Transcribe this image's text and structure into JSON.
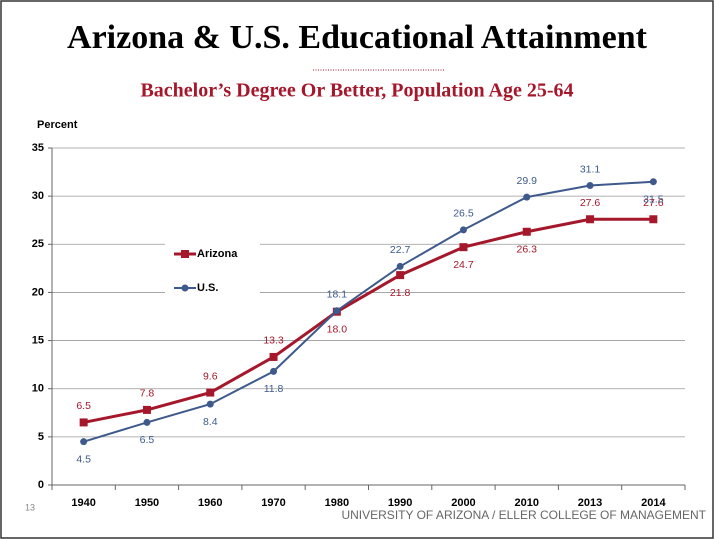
{
  "chart_data": {
    "type": "line",
    "title": "Arizona & U.S. Educational Attainment",
    "subtitle": "Bachelor’s Degree Or Better, Population Age 25-64",
    "y_label": "Percent",
    "categories": [
      "1940",
      "1950",
      "1960",
      "1970",
      "1980",
      "1990",
      "2000",
      "2010",
      "2013",
      "2014"
    ],
    "series": [
      {
        "name": "Arizona",
        "color": "#a5172b",
        "values": [
          6.5,
          7.8,
          9.6,
          13.3,
          18.0,
          21.8,
          24.7,
          26.3,
          27.6,
          27.6
        ],
        "value_labels": [
          "6.5",
          "7.8",
          "9.6",
          "13.3",
          "18.0",
          "21.8",
          "24.7",
          "26.3",
          "27.6",
          "27.6"
        ]
      },
      {
        "name": "U.S.",
        "color": "#3e5a8c",
        "values": [
          4.5,
          6.5,
          8.4,
          11.8,
          18.1,
          22.7,
          26.5,
          29.9,
          31.1,
          31.5
        ],
        "value_labels": [
          "4.5",
          "6.5",
          "8.4",
          "11.8",
          "18.1",
          "22.7",
          "26.5",
          "29.9",
          "31.1",
          "31.5"
        ]
      }
    ],
    "ylim": [
      0,
      35
    ],
    "yticks": [
      0,
      5,
      10,
      15,
      20,
      25,
      30,
      35
    ],
    "grid": true,
    "legend": "left"
  },
  "slide": {
    "number": "13",
    "footer": "UNIVERSITY OF ARIZONA / ELLER COLLEGE OF MANAGEMENT"
  }
}
